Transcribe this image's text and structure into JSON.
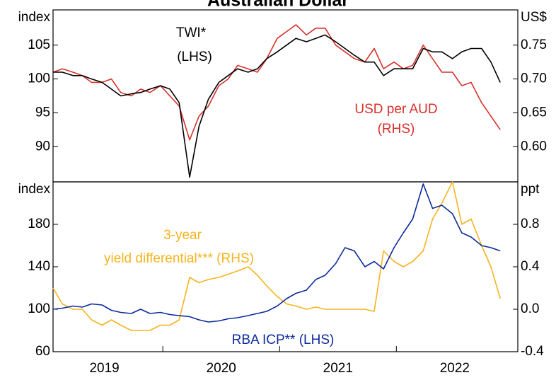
{
  "chart_data": [
    {
      "type": "line",
      "title": "Australian Dollar",
      "ylabel": "index",
      "y2label": "US$",
      "x": [
        2019.06,
        2019.14,
        2019.23,
        2019.31,
        2019.39,
        2019.48,
        2019.56,
        2019.64,
        2019.73,
        2019.81,
        2019.89,
        2019.98,
        2020.06,
        2020.14,
        2020.23,
        2020.31,
        2020.39,
        2020.48,
        2020.56,
        2020.64,
        2020.73,
        2020.81,
        2020.89,
        2020.98,
        2021.06,
        2021.14,
        2021.23,
        2021.31,
        2021.39,
        2021.48,
        2021.56,
        2021.64,
        2021.73,
        2021.81,
        2021.89,
        2021.98,
        2022.06,
        2022.14,
        2022.23,
        2022.31,
        2022.39,
        2022.48,
        2022.56,
        2022.64,
        2022.73,
        2022.81,
        2022.89
      ],
      "xlim": [
        2019.06,
        2023.04
      ],
      "ylim": [
        84.8,
        110.2
      ],
      "yticks": [
        90,
        95,
        100,
        105
      ],
      "y2lim": [
        0.548,
        0.802
      ],
      "y2ticks": [
        {
          "value": 0.6,
          "label": "0.60"
        },
        {
          "value": 0.65,
          "label": "0.65"
        },
        {
          "value": 0.7,
          "label": "0.70"
        },
        {
          "value": 0.75,
          "label": "0.75"
        }
      ],
      "series": [
        {
          "name": "USD per AUD",
          "color": "#d6312b",
          "axis": "y2",
          "values": [
            0.71,
            0.715,
            0.71,
            0.705,
            0.695,
            0.695,
            0.7,
            0.68,
            0.675,
            0.685,
            0.68,
            0.69,
            0.675,
            0.66,
            0.61,
            0.645,
            0.66,
            0.69,
            0.7,
            0.72,
            0.715,
            0.71,
            0.73,
            0.76,
            0.77,
            0.78,
            0.765,
            0.775,
            0.775,
            0.75,
            0.74,
            0.73,
            0.725,
            0.745,
            0.715,
            0.725,
            0.715,
            0.72,
            0.75,
            0.73,
            0.71,
            0.71,
            0.69,
            0.695,
            0.665,
            0.645,
            0.625
          ]
        },
        {
          "name": "TWI*",
          "color": "#000000",
          "values": [
            101,
            101,
            100.5,
            100.5,
            100,
            99.5,
            98.5,
            97.5,
            97.8,
            98,
            98.5,
            99,
            98.5,
            96.5,
            85.5,
            93,
            97,
            99.5,
            100.5,
            101.5,
            101,
            101.5,
            103,
            104,
            105,
            106,
            105.5,
            106,
            106.5,
            105.5,
            104.5,
            103.5,
            102.5,
            102.5,
            100.5,
            101.5,
            101.5,
            101.5,
            104.5,
            104,
            104,
            103,
            104,
            104.5,
            104.5,
            102.5,
            99.5
          ]
        }
      ],
      "annotations": [
        {
          "text": "TWI*",
          "color": "#000000"
        },
        {
          "text": "(LHS)",
          "color": "#000000"
        },
        {
          "text": "USD per AUD",
          "color": "#d6312b"
        },
        {
          "text": "(RHS)",
          "color": "#d6312b"
        }
      ]
    },
    {
      "type": "line",
      "ylabel": "index",
      "y2label": "ppt",
      "x": [
        2019.06,
        2019.14,
        2019.23,
        2019.31,
        2019.39,
        2019.48,
        2019.56,
        2019.64,
        2019.73,
        2019.81,
        2019.89,
        2019.98,
        2020.06,
        2020.14,
        2020.23,
        2020.31,
        2020.39,
        2020.48,
        2020.56,
        2020.64,
        2020.73,
        2020.81,
        2020.89,
        2020.98,
        2021.06,
        2021.14,
        2021.23,
        2021.31,
        2021.39,
        2021.48,
        2021.56,
        2021.64,
        2021.73,
        2021.81,
        2021.89,
        2021.98,
        2022.06,
        2022.14,
        2022.23,
        2022.31,
        2022.39,
        2022.48,
        2022.56,
        2022.64,
        2022.73,
        2022.81,
        2022.89
      ],
      "xlim": [
        2019.06,
        2023.04
      ],
      "xticks": [
        {
          "value": 2019.5,
          "label": "2019"
        },
        {
          "value": 2020.5,
          "label": "2020"
        },
        {
          "value": 2021.5,
          "label": "2021"
        },
        {
          "value": 2022.5,
          "label": "2022"
        }
      ],
      "xminorticks": [
        2020,
        2021,
        2022
      ],
      "ylim": [
        60,
        220
      ],
      "yticks": [
        60,
        100,
        140,
        180
      ],
      "y2lim": [
        -0.4,
        1.2
      ],
      "y2ticks": [
        -0.4,
        {
          "value": 0,
          "label": "0.0"
        },
        0.4,
        0.8
      ],
      "series": [
        {
          "name": "3-year yield differential*** (RHS)",
          "color": "#f5b41e",
          "axis": "y2",
          "values": [
            0.2,
            0.05,
            0,
            0,
            -0.1,
            -0.15,
            -0.1,
            -0.15,
            -0.2,
            -0.2,
            -0.2,
            -0.15,
            -0.15,
            -0.1,
            0.3,
            0.25,
            0.28,
            0.3,
            0.33,
            0.36,
            0.4,
            0.32,
            0.22,
            0.12,
            0.05,
            0.03,
            0,
            0.02,
            0,
            0,
            0,
            0,
            0,
            -0.02,
            0.55,
            0.45,
            0.4,
            0.45,
            0.55,
            0.85,
            1.0,
            1.2,
            0.8,
            0.85,
            0.6,
            0.4,
            0.1
          ]
        },
        {
          "name": "RBA ICP** (LHS)",
          "color": "#0d2a9c",
          "values": [
            100,
            101,
            103,
            102,
            105,
            104,
            99,
            97,
            96,
            100,
            96,
            97,
            95,
            94,
            93,
            90,
            88,
            89,
            91,
            92,
            94,
            96,
            98,
            103,
            110,
            115,
            118,
            128,
            132,
            143,
            158,
            155,
            140,
            145,
            138,
            158,
            172,
            185,
            218,
            195,
            198,
            190,
            172,
            168,
            160,
            158,
            155
          ]
        }
      ],
      "annotations": [
        {
          "text": "3-year",
          "color": "#f5b41e"
        },
        {
          "text": "yield differential*** (RHS)",
          "color": "#f5b41e"
        },
        {
          "text": "RBA ICP** (LHS)",
          "color": "#0d2a9c"
        }
      ]
    }
  ]
}
